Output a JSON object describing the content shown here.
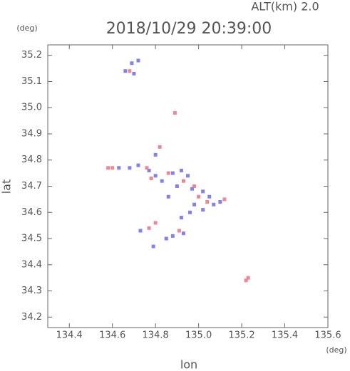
{
  "chart_data": {
    "type": "scatter",
    "title": "2018/10/29 20:39:00",
    "subtitle": "ALT(km) 2.0",
    "x_label": "lon",
    "y_label": "lat",
    "x_unit": "(deg)",
    "y_unit": "(deg)",
    "xlim": [
      134.3,
      135.6
    ],
    "ylim": [
      34.16,
      35.24
    ],
    "xticks": [
      134.4,
      134.6,
      134.8,
      {
        "value": 135,
        "label": "135.0"
      },
      135.2,
      135.4,
      135.6
    ],
    "yticks": [
      34.2,
      34.3,
      34.4,
      34.5,
      34.6,
      34.7,
      34.8,
      34.9,
      {
        "value": 35,
        "label": "35.0"
      },
      35.1,
      35.2
    ],
    "series": [
      {
        "color": "#6b6bf0",
        "x": [
          134.69,
          134.7,
          134.72,
          134.66,
          134.63,
          134.68,
          134.72,
          134.8,
          134.83,
          134.88,
          134.92,
          134.95,
          134.9,
          134.97,
          135.02,
          135.05,
          135.07,
          135.02,
          134.96,
          134.92,
          134.93,
          134.88,
          134.73,
          134.79,
          134.85,
          134.8,
          134.77,
          135.1,
          134.98,
          134.86
        ],
        "y": [
          35.17,
          35.13,
          35.18,
          35.14,
          34.77,
          34.77,
          34.78,
          34.74,
          34.72,
          34.75,
          34.76,
          34.74,
          34.7,
          34.69,
          34.68,
          34.66,
          34.63,
          34.61,
          34.6,
          34.58,
          34.52,
          34.51,
          34.53,
          34.47,
          34.5,
          34.82,
          34.76,
          34.64,
          34.63,
          34.66
        ]
      },
      {
        "color": "#f07080",
        "x": [
          134.68,
          134.89,
          134.76,
          134.82,
          134.86,
          134.78,
          134.93,
          135.0,
          135.04,
          134.8,
          134.77,
          135.23,
          135.22,
          134.6,
          134.98,
          135.12,
          134.91,
          134.58
        ],
        "y": [
          35.14,
          34.98,
          34.77,
          34.85,
          34.75,
          34.73,
          34.72,
          34.66,
          34.64,
          34.56,
          34.54,
          34.35,
          34.34,
          34.77,
          34.7,
          34.65,
          34.53,
          34.77
        ]
      }
    ]
  }
}
